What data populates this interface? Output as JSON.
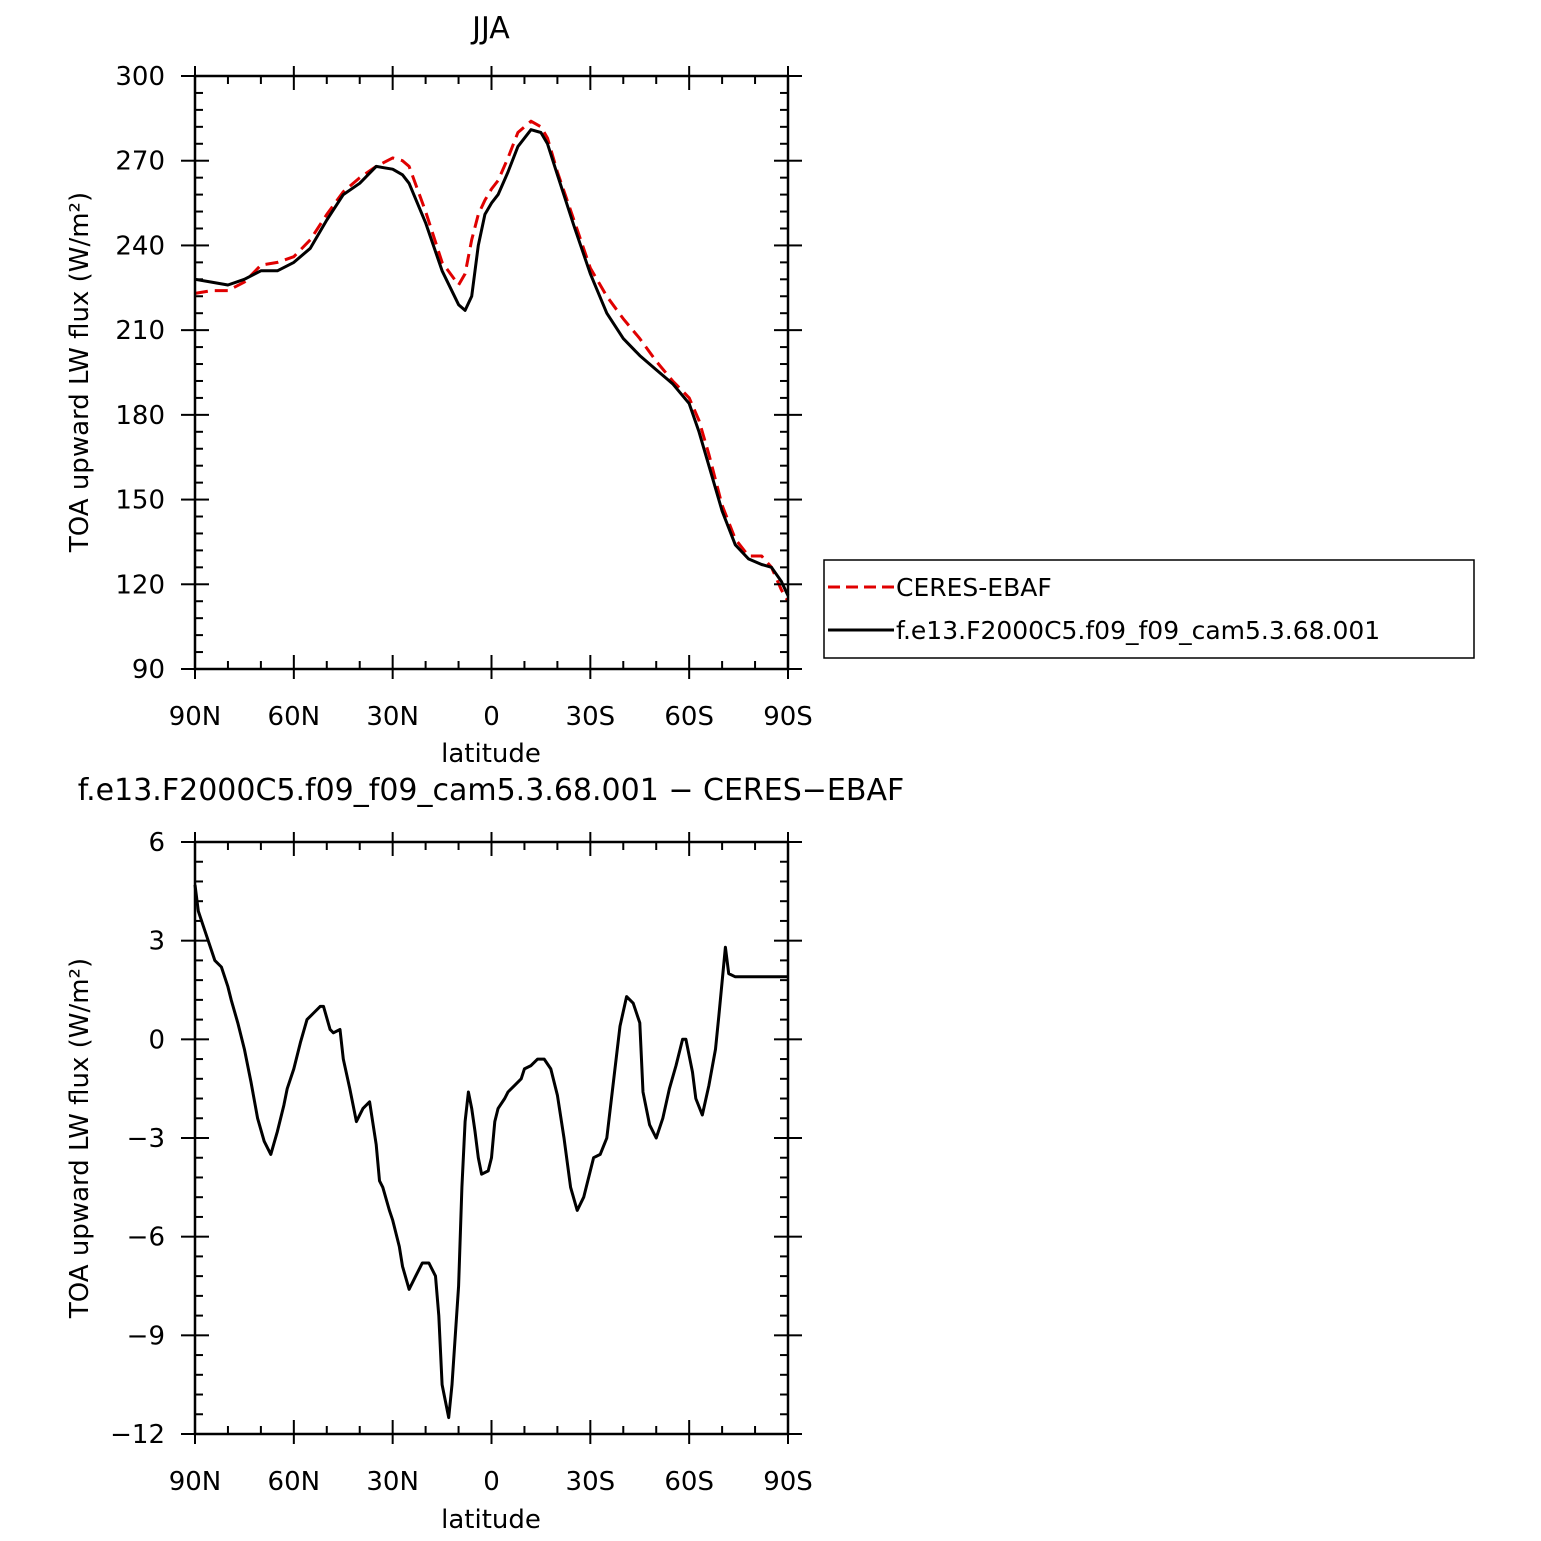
{
  "chart_data": [
    {
      "type": "line",
      "title": "JJA",
      "xlabel": "latitude",
      "ylabel": "TOA upward LW flux (W/m²)",
      "xlim": [
        90,
        -90
      ],
      "ylim": [
        90,
        300
      ],
      "x_tick_values": [
        90,
        60,
        30,
        0,
        -30,
        -60,
        -90
      ],
      "x_tick_labels": [
        "90N",
        "60N",
        "30N",
        "0",
        "30S",
        "60S",
        "90S"
      ],
      "y_ticks": [
        90,
        120,
        150,
        180,
        210,
        240,
        270,
        300
      ],
      "y_tick_labels": [
        "90",
        "120",
        "150",
        "180",
        "210",
        "240",
        "270",
        "300"
      ],
      "legend_position": "right",
      "series": [
        {
          "name": "CERES-EBAF",
          "color": "#e00000",
          "dash": "dashed",
          "x": [
            90,
            85,
            80,
            75,
            70,
            65,
            60,
            55,
            50,
            45,
            40,
            35,
            30,
            27,
            25,
            20,
            15,
            10,
            8,
            6,
            4,
            2,
            0,
            -2,
            -5,
            -8,
            -12,
            -15,
            -17,
            -20,
            -25,
            -30,
            -35,
            -40,
            -45,
            -50,
            -55,
            -60,
            -63,
            -66,
            -70,
            -74,
            -78,
            -82,
            -85,
            -88,
            -90
          ],
          "y": [
            223,
            224,
            224,
            227,
            233,
            234,
            236,
            242,
            251,
            259,
            264,
            268,
            271,
            270,
            268,
            252,
            234,
            226,
            230,
            242,
            251,
            256,
            260,
            263,
            271,
            280,
            284,
            282,
            278,
            266,
            249,
            232,
            222,
            214,
            207,
            199,
            192,
            186,
            178,
            166,
            148,
            136,
            130,
            130,
            126,
            118,
            114
          ]
        },
        {
          "name": "f.e13.F2000C5.f09_f09_cam5.3.68.001",
          "color": "#000000",
          "dash": "solid",
          "x": [
            90,
            85,
            80,
            75,
            70,
            65,
            60,
            55,
            50,
            45,
            40,
            35,
            30,
            27,
            25,
            20,
            15,
            10,
            8,
            6,
            4,
            2,
            0,
            -2,
            -5,
            -8,
            -12,
            -15,
            -17,
            -20,
            -25,
            -30,
            -35,
            -40,
            -45,
            -50,
            -55,
            -60,
            -63,
            -66,
            -70,
            -74,
            -78,
            -82,
            -85,
            -88,
            -90
          ],
          "y": [
            228,
            227,
            226,
            228,
            231,
            231,
            234,
            239,
            249,
            258,
            262,
            268,
            267,
            265,
            262,
            248,
            231,
            219,
            217,
            222,
            240,
            251,
            255,
            258,
            266,
            275,
            281,
            280,
            276,
            265,
            247,
            230,
            216,
            207,
            201,
            196,
            191,
            184,
            174,
            162,
            146,
            134,
            129,
            127,
            126,
            121,
            116
          ]
        }
      ]
    },
    {
      "type": "line",
      "title": "f.e13.F2000C5.f09_f09_cam5.3.68.001 − CERES−EBAF",
      "xlabel": "latitude",
      "ylabel": "TOA upward LW flux (W/m²)",
      "xlim": [
        90,
        -90
      ],
      "ylim": [
        -12,
        6
      ],
      "x_tick_values": [
        90,
        60,
        30,
        0,
        -30,
        -60,
        -90
      ],
      "x_tick_labels": [
        "90N",
        "60N",
        "30N",
        "0",
        "30S",
        "60S",
        "90S"
      ],
      "y_ticks": [
        -12,
        -9,
        -6,
        -3,
        0,
        3,
        6
      ],
      "y_tick_labels": [
        "−12",
        "−9",
        "−6",
        "−3",
        "0",
        "3",
        "6"
      ],
      "series": [
        {
          "color": "#000000",
          "dash": "solid",
          "x": [
            90,
            89,
            87,
            85,
            84,
            82,
            80,
            79,
            77,
            75,
            73,
            71,
            69,
            67,
            65,
            63,
            62,
            60,
            58,
            56,
            54,
            52,
            51,
            49,
            48,
            46,
            45,
            43,
            41,
            39,
            37,
            35,
            34,
            33,
            31,
            30,
            28,
            27,
            25,
            23,
            21,
            19,
            17,
            16,
            15,
            13,
            12,
            10,
            9,
            8,
            7,
            6,
            5,
            4,
            3,
            1,
            0,
            -1,
            -2,
            -4,
            -5,
            -7,
            -9,
            -10,
            -12,
            -14,
            -16,
            -18,
            -20,
            -22,
            -24,
            -26,
            -28,
            -30,
            -31,
            -33,
            -35,
            -37,
            -39,
            -41,
            -43,
            -45,
            -46,
            -48,
            -50,
            -52,
            -54,
            -56,
            -58,
            -59,
            -61,
            -62,
            -64,
            -66,
            -68,
            -69,
            -71,
            -72,
            -74,
            -75,
            -76,
            -78,
            -80,
            -82,
            -83,
            -84,
            -86,
            -87,
            -88,
            -89,
            -90
          ],
          "y": [
            4.7,
            3.9,
            3.3,
            2.7,
            2.4,
            2.2,
            1.6,
            1.2,
            0.5,
            -0.3,
            -1.3,
            -2.4,
            -3.1,
            -3.5,
            -2.8,
            -2.0,
            -1.5,
            -0.9,
            -0.1,
            0.6,
            0.8,
            1.0,
            1.0,
            0.3,
            0.2,
            0.3,
            -0.6,
            -1.5,
            -2.5,
            -2.1,
            -1.9,
            -3.2,
            -4.3,
            -4.5,
            -5.2,
            -5.5,
            -6.3,
            -6.9,
            -7.6,
            -7.2,
            -6.8,
            -6.8,
            -7.2,
            -8.4,
            -10.5,
            -11.5,
            -10.5,
            -7.5,
            -4.5,
            -2.5,
            -1.6,
            -2.1,
            -2.8,
            -3.6,
            -4.1,
            -4.0,
            -3.6,
            -2.5,
            -2.1,
            -1.8,
            -1.6,
            -1.4,
            -1.2,
            -0.9,
            -0.8,
            -0.6,
            -0.6,
            -0.9,
            -1.7,
            -3.0,
            -4.5,
            -5.2,
            -4.8,
            -4.0,
            -3.6,
            -3.5,
            -3.0,
            -1.3,
            0.4,
            1.3,
            1.1,
            0.5,
            -1.6,
            -2.6,
            -3.0,
            -2.4,
            -1.5,
            -0.8,
            0.0,
            0.0,
            -1.0,
            -1.8,
            -2.3,
            -1.4,
            -0.3,
            0.7,
            2.8,
            2.0,
            1.9,
            1.9,
            1.9,
            1.9,
            1.9,
            1.9,
            1.9,
            1.9,
            1.9,
            1.9,
            1.9,
            1.9,
            1.9
          ]
        }
      ]
    }
  ]
}
